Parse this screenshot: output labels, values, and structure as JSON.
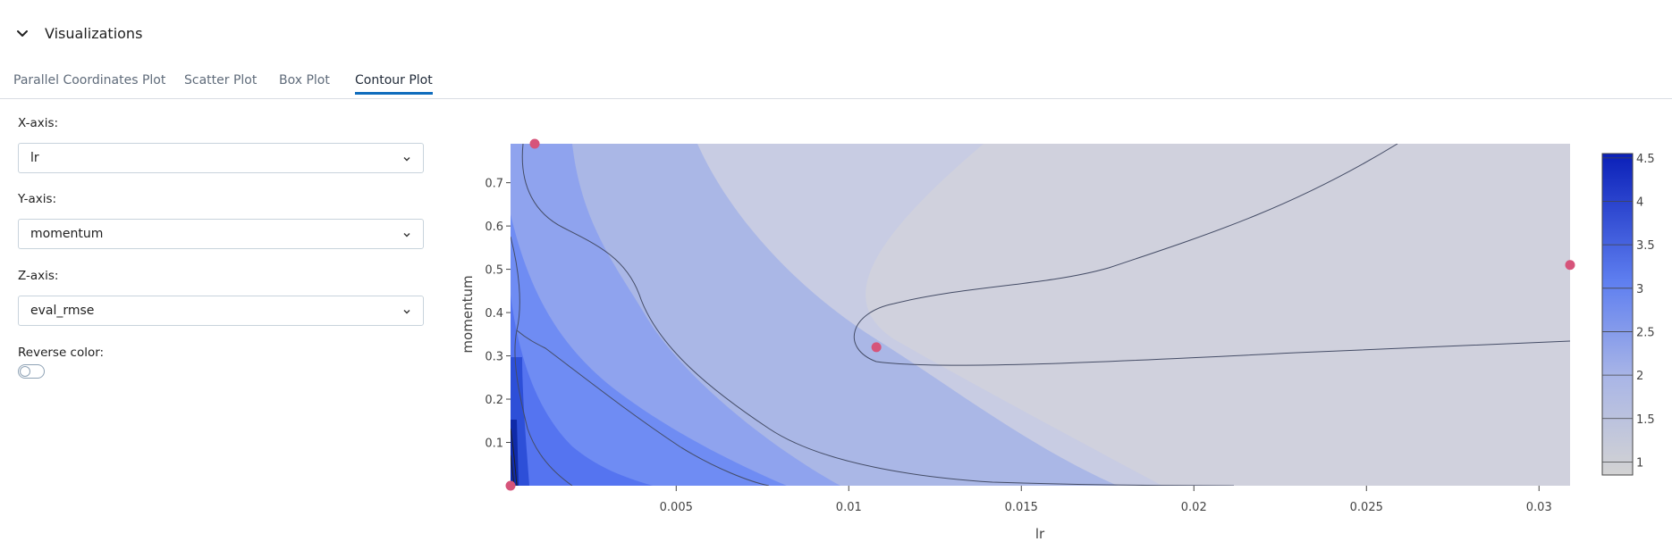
{
  "section": {
    "title": "Visualizations",
    "toggle_icon": "chevron-down-icon"
  },
  "tabs": [
    {
      "label": "Parallel Coordinates Plot",
      "active": false
    },
    {
      "label": "Scatter Plot",
      "active": false
    },
    {
      "label": "Box Plot",
      "active": false
    },
    {
      "label": "Contour Plot",
      "active": true
    }
  ],
  "controls": {
    "x_axis": {
      "label": "X-axis:",
      "value": "lr"
    },
    "y_axis": {
      "label": "Y-axis:",
      "value": "momentum"
    },
    "z_axis": {
      "label": "Z-axis:",
      "value": "eval_rmse"
    },
    "reverse_color": {
      "label": "Reverse color:",
      "on": false
    }
  },
  "colors": {
    "accent": "#0f6cbd",
    "point": "#d6547a",
    "scale_low": "#d3d3d3",
    "scale_high": "#0a1fb8"
  },
  "chart_data": {
    "type": "contour",
    "xlabel": "lr",
    "ylabel": "momentum",
    "xlim": [
      0.0002,
      0.0309
    ],
    "ylim": [
      0.0,
      0.79
    ],
    "x_ticks": [
      "0.005",
      "0.01",
      "0.015",
      "0.02",
      "0.025",
      "0.03"
    ],
    "x_tick_values": [
      0.005,
      0.01,
      0.015,
      0.02,
      0.025,
      0.03
    ],
    "y_ticks": [
      "0.1",
      "0.2",
      "0.3",
      "0.4",
      "0.5",
      "0.6",
      "0.7"
    ],
    "y_tick_values": [
      0.1,
      0.2,
      0.3,
      0.4,
      0.5,
      0.6,
      0.7
    ],
    "colorbar": {
      "labels": [
        "1",
        "1.5",
        "2",
        "2.5",
        "3",
        "3.5",
        "4",
        "4.5"
      ],
      "values": [
        1,
        1.5,
        2,
        2.5,
        3,
        3.5,
        4,
        4.5
      ],
      "range": [
        0.85,
        4.55
      ]
    },
    "points": [
      {
        "x": 0.0009,
        "y": 0.79
      },
      {
        "x": 0.0108,
        "y": 0.32
      },
      {
        "x": 0.0309,
        "y": 0.51
      },
      {
        "x": 0.0002,
        "y": 0.0
      }
    ]
  }
}
